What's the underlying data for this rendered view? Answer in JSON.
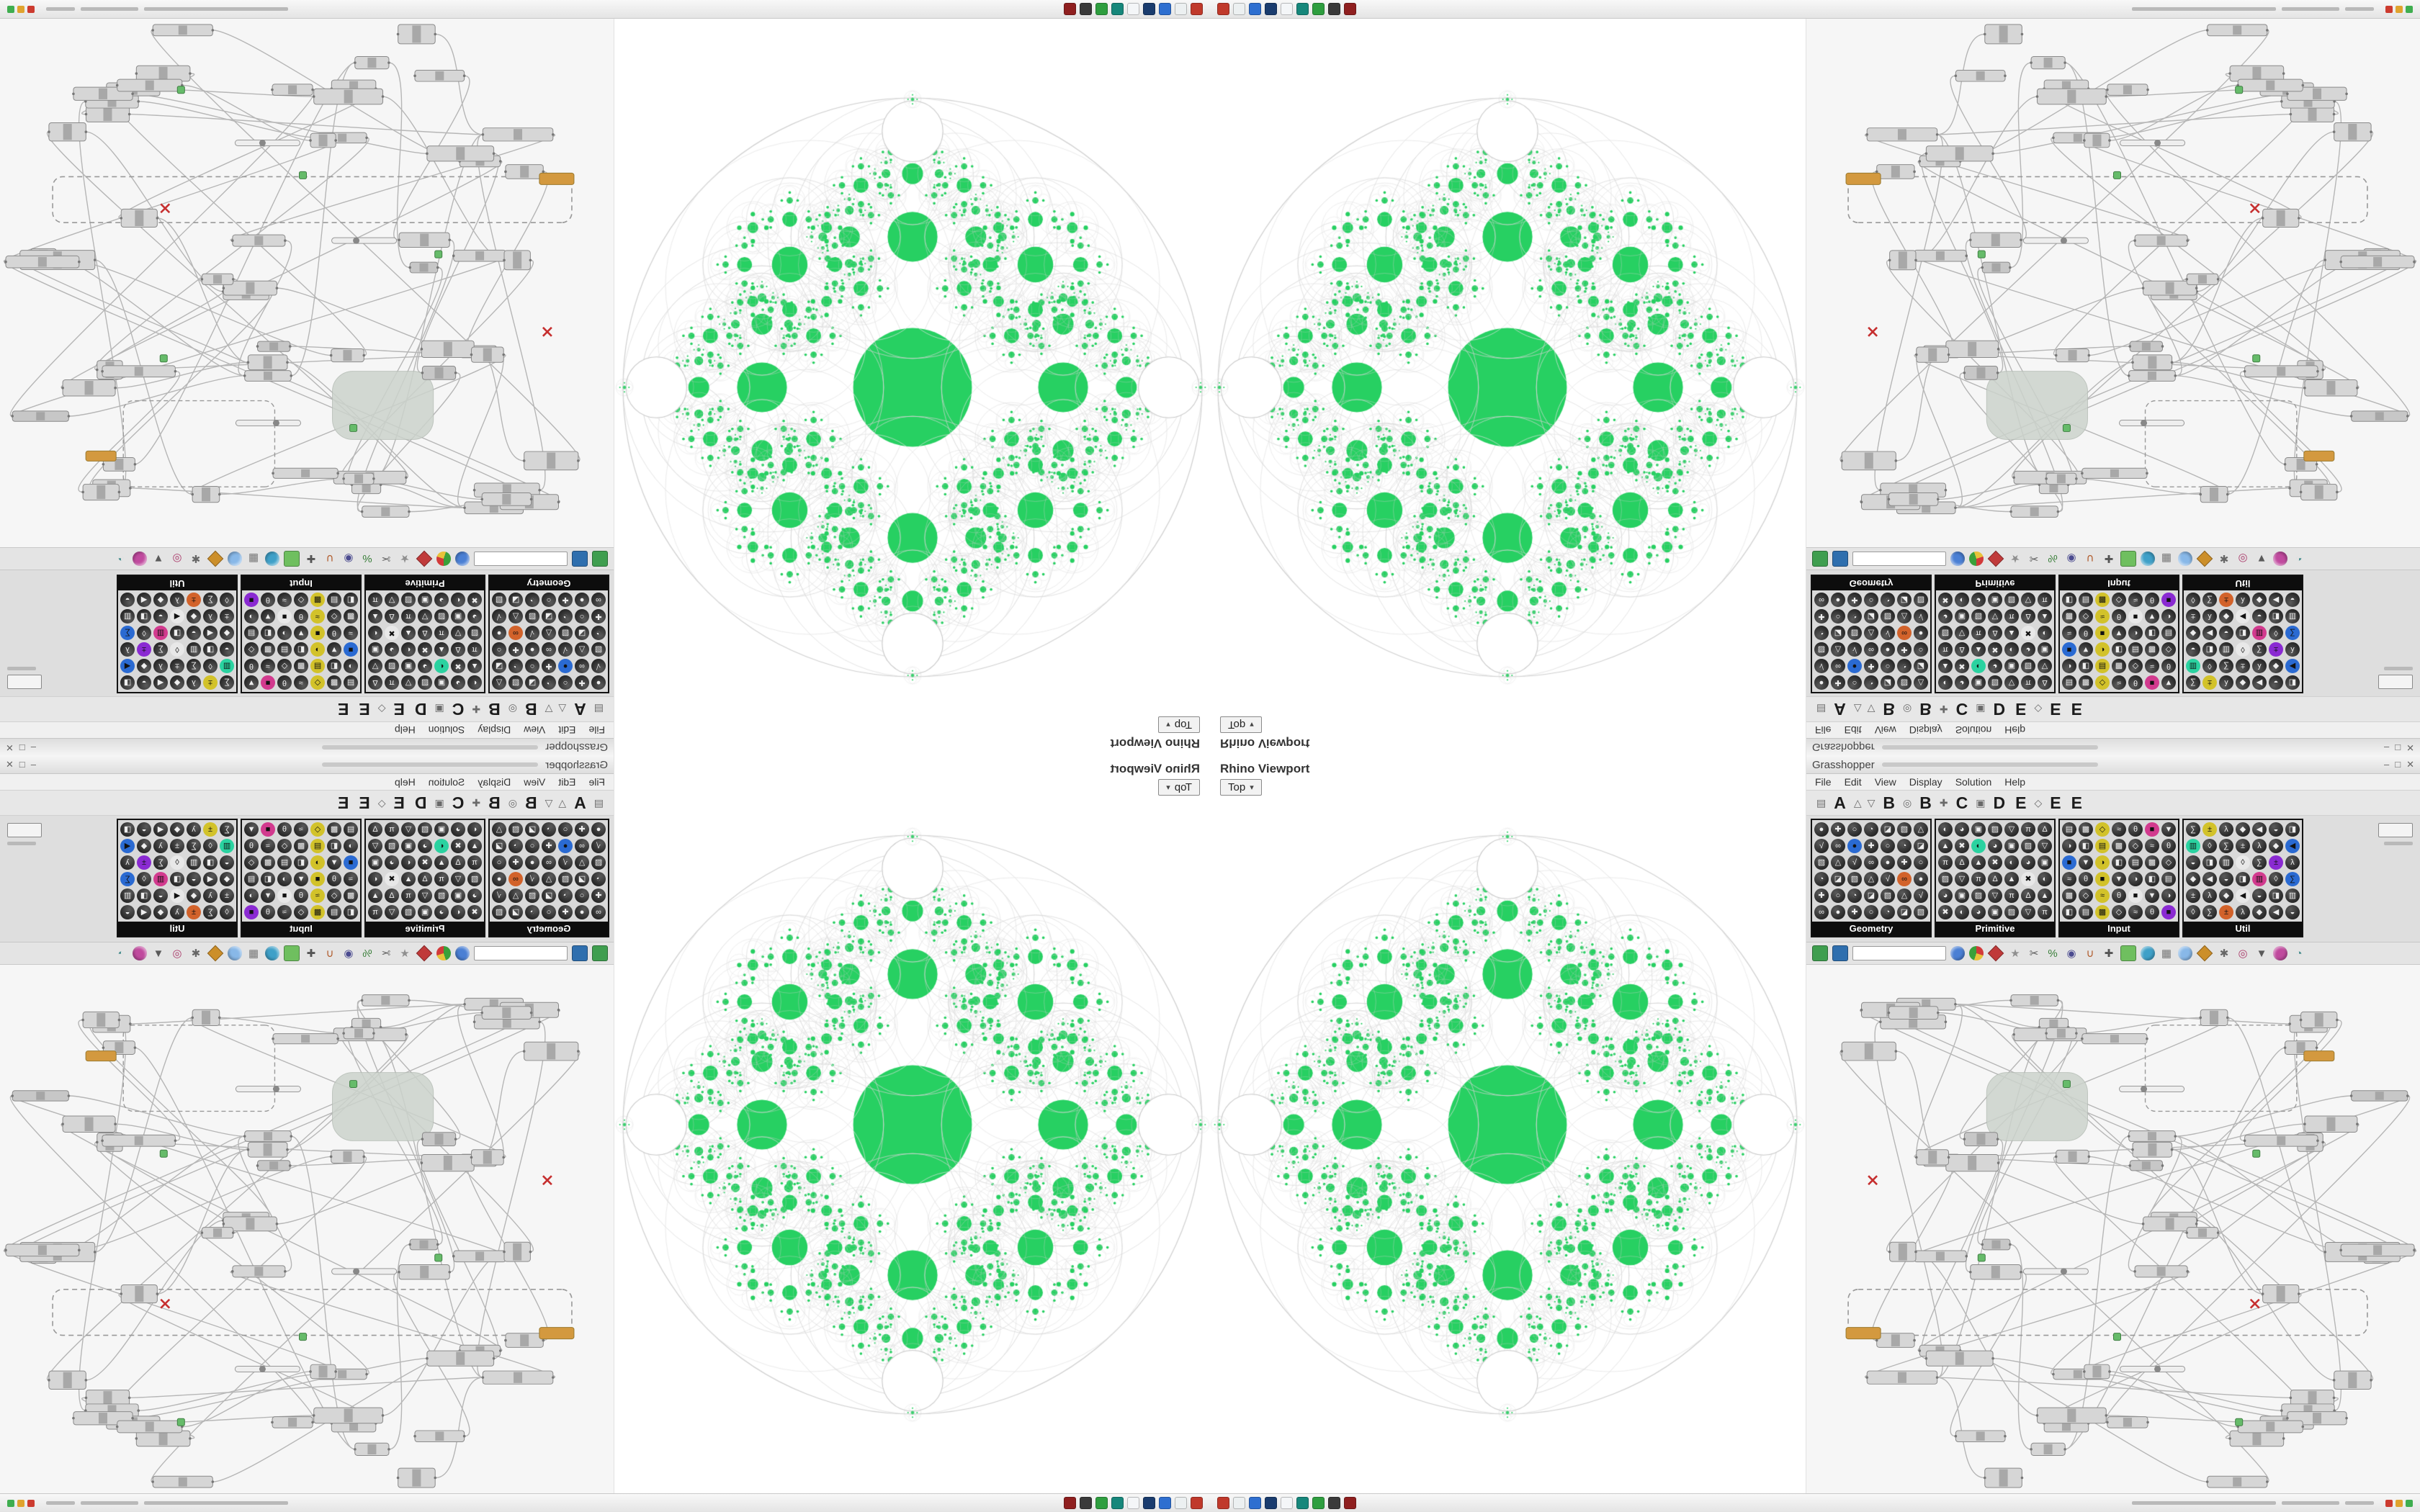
{
  "window": {
    "title": "Grasshopper",
    "minimize": "–",
    "maximize": "□",
    "close": "✕"
  },
  "viewport": {
    "title": "Rhino Viewport",
    "tab": "Top",
    "caret": "▾"
  },
  "menu": {
    "items": [
      "File",
      "Edit",
      "View",
      "Display",
      "Solution",
      "Help"
    ]
  },
  "tabstrip": {
    "items": [
      {
        "t": "icon",
        "v": "▤"
      },
      {
        "t": "letter",
        "v": "A"
      },
      {
        "t": "icon",
        "v": "△"
      },
      {
        "t": "icon",
        "v": "▽"
      },
      {
        "t": "letter",
        "v": "B"
      },
      {
        "t": "icon",
        "v": "◎"
      },
      {
        "t": "letter",
        "v": "B"
      },
      {
        "t": "icon",
        "v": "✚"
      },
      {
        "t": "letter",
        "v": "C"
      },
      {
        "t": "icon",
        "v": "▣"
      },
      {
        "t": "letter",
        "v": "D"
      },
      {
        "t": "letter",
        "v": "E"
      },
      {
        "t": "icon",
        "v": "◇"
      },
      {
        "t": "letter",
        "v": "E"
      },
      {
        "t": "letter",
        "v": "E"
      }
    ]
  },
  "palette": {
    "cols": 7,
    "rows": 6,
    "groups": [
      {
        "name": "Geometry"
      },
      {
        "name": "Primitive"
      },
      {
        "name": "Input"
      },
      {
        "name": "Util"
      }
    ],
    "icon_colors": [
      "#d23a8e",
      "#8a2ad2",
      "#2a6ad2",
      "#2ad2a0",
      "#d2c22a",
      "#d2622a",
      "#e8e8e8"
    ]
  },
  "toolbar": {
    "search": {
      "value": ""
    },
    "lead_icons": [
      {
        "name": "doc-green-icon",
        "shape": "sq",
        "color": "#3f9e4f"
      },
      {
        "name": "doc-blue-icon",
        "shape": "sq",
        "color": "#2f6fae"
      }
    ],
    "icons": [
      {
        "name": "sphere-icon",
        "shape": "ci",
        "color": "#4a7fd4"
      },
      {
        "name": "pie-icon",
        "shape": "pie",
        "color": "#d23a3a"
      },
      {
        "name": "gem-icon",
        "shape": "di",
        "color": "#c03a3a"
      },
      {
        "name": "star-icon",
        "shape": "gl",
        "glyph": "★",
        "color": "#8f8f8f"
      },
      {
        "name": "scissors-icon",
        "shape": "gl",
        "glyph": "✂",
        "color": "#5a5a5a"
      },
      {
        "name": "percent-icon",
        "shape": "gl",
        "glyph": "%",
        "color": "#3a7f3a"
      },
      {
        "name": "eye-icon",
        "shape": "gl",
        "glyph": "◉",
        "color": "#4a4a8f"
      },
      {
        "name": "magnet-icon",
        "shape": "gl",
        "glyph": "∪",
        "color": "#b05a2a"
      },
      {
        "name": "axes-icon",
        "shape": "gl",
        "glyph": "✚",
        "color": "#555555"
      },
      {
        "name": "sprout-icon",
        "shape": "sq",
        "color": "#6fbf5f"
      },
      {
        "name": "droplet-icon",
        "shape": "ci",
        "color": "#3fa0c8"
      },
      {
        "name": "cube-icon",
        "shape": "gl",
        "glyph": "▦",
        "color": "#777777"
      },
      {
        "name": "lens-icon",
        "shape": "ci",
        "color": "#88b8e8"
      },
      {
        "name": "flag-icon",
        "shape": "di",
        "color": "#cc8f2a"
      },
      {
        "name": "asterisk-icon",
        "shape": "gl",
        "glyph": "✱",
        "color": "#666666"
      },
      {
        "name": "target-icon",
        "shape": "gl",
        "glyph": "◎",
        "color": "#aa3a6a"
      },
      {
        "name": "pin-icon",
        "shape": "gl",
        "glyph": "▼",
        "color": "#5a5a5a"
      },
      {
        "name": "paint-icon",
        "shape": "ci",
        "color": "#c04a9e"
      },
      {
        "name": "gauge-icon",
        "shape": "gl",
        "glyph": "◔",
        "color": "#4a8f8f"
      }
    ]
  },
  "sysbar": {
    "icons": [
      "#c0392b",
      "#ecf0f1",
      "#2e6fd0",
      "#1a3c6e",
      "#f4f6f8",
      "#17877b",
      "#2e9e3f",
      "#3a3a3a",
      "#8f1f1f"
    ],
    "edge_dots": [
      "#cc3b2f",
      "#e0a32e",
      "#3fae4f"
    ]
  },
  "fractal": {
    "green": "#27d062",
    "line": "#d0d0d0",
    "edge_circle": "#ffffff"
  },
  "ghcanvas": {
    "seed": 17,
    "nodes": 58,
    "node_fill": "#d6d6d6",
    "node_stroke": "#8a8a8a",
    "wire": "#b6b6b6",
    "accent_orange": "#d3993f",
    "accent_green": "#66bb6a",
    "accent_red": "#c62f2f",
    "blob_fill": "#ccd3cc"
  }
}
